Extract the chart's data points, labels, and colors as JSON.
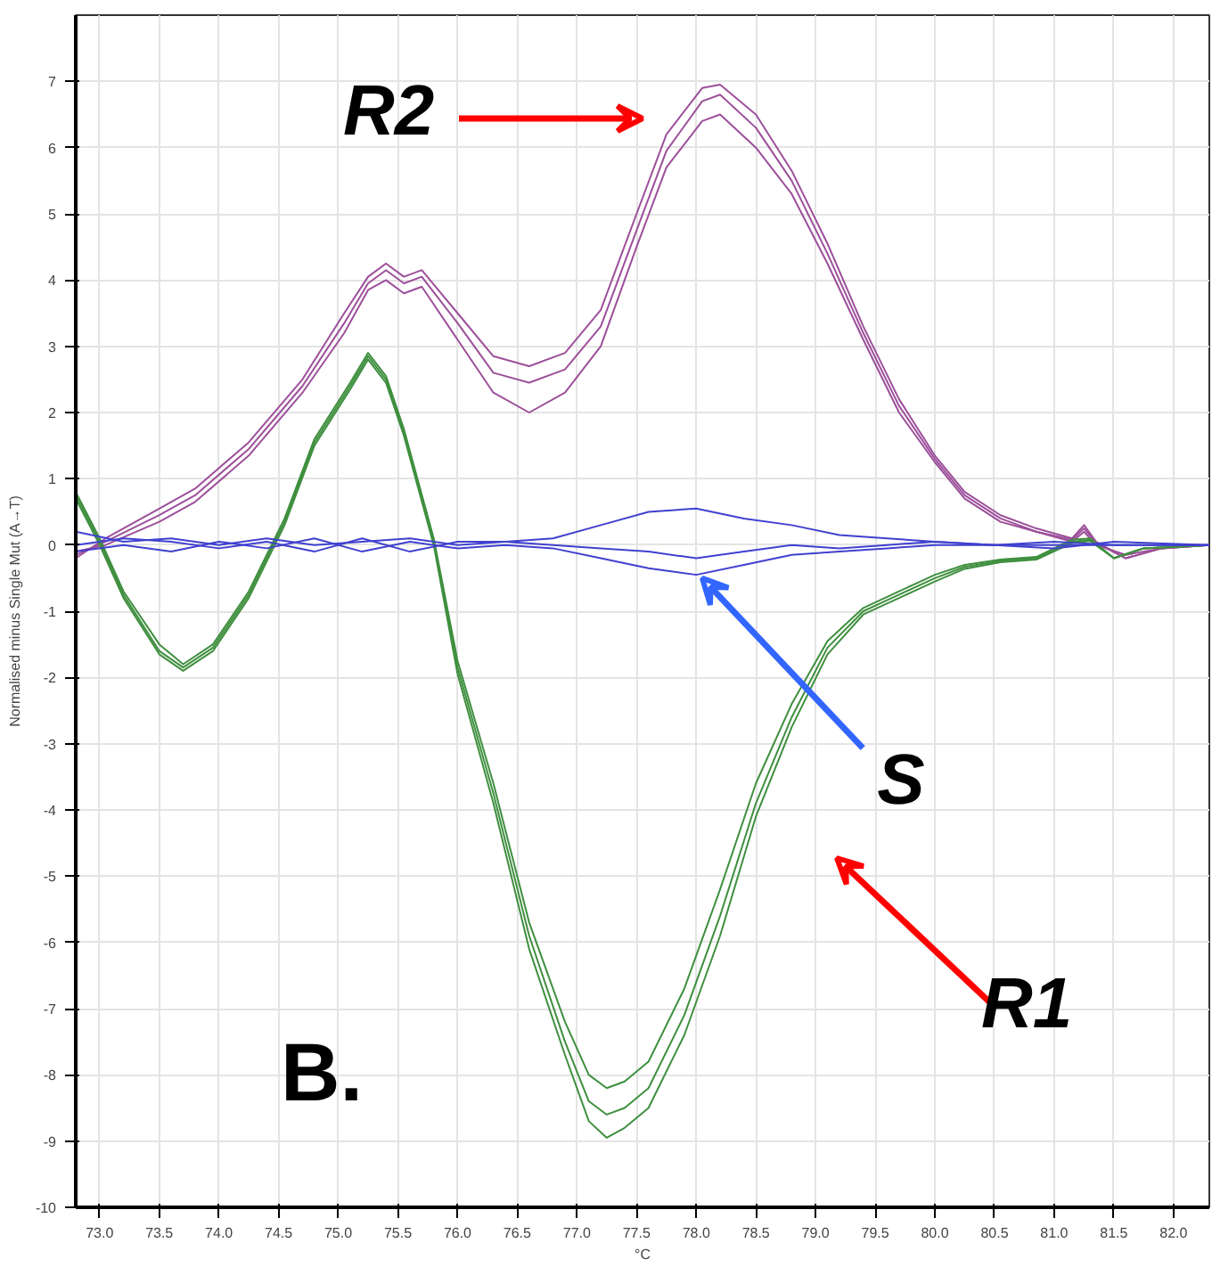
{
  "chart_data": {
    "type": "line",
    "xlabel": "°C",
    "ylabel": "Normalised minus Single Mut (A→T)",
    "xlim": [
      72.8,
      82.3
    ],
    "ylim": [
      -10,
      8
    ],
    "xticks": [
      {
        "value": 73.0,
        "label": "73.0"
      },
      {
        "value": 73.5,
        "label": "73.5"
      },
      {
        "value": 74.0,
        "label": "74.0"
      },
      {
        "value": 74.5,
        "label": "74.5"
      },
      {
        "value": 75.0,
        "label": "75.0"
      },
      {
        "value": 75.5,
        "label": "75.5"
      },
      {
        "value": 76.0,
        "label": "76.0"
      },
      {
        "value": 76.5,
        "label": "76.5"
      },
      {
        "value": 77.0,
        "label": "77.0"
      },
      {
        "value": 77.5,
        "label": "77.5"
      },
      {
        "value": 78.0,
        "label": "78.0"
      },
      {
        "value": 78.5,
        "label": "78.5"
      },
      {
        "value": 79.0,
        "label": "79.0"
      },
      {
        "value": 79.5,
        "label": "79.5"
      },
      {
        "value": 80.0,
        "label": "80.0"
      },
      {
        "value": 80.5,
        "label": "80.5"
      },
      {
        "value": 81.0,
        "label": "81.0"
      },
      {
        "value": 81.5,
        "label": "81.5"
      },
      {
        "value": 82.0,
        "label": "82.0"
      }
    ],
    "yticks": [
      -10,
      -9,
      -8,
      -7,
      -6,
      -5,
      -4,
      -3,
      -2,
      -1,
      0,
      1,
      2,
      3,
      4,
      5,
      6,
      7
    ],
    "grid": true,
    "line_style": "solid",
    "marker": "none",
    "x": [
      72.8,
      73.05,
      73.5,
      73.8,
      74.25,
      74.7,
      75.05,
      75.25,
      75.4,
      75.55,
      75.7,
      76.0,
      76.3,
      76.6,
      76.9,
      77.2,
      77.5,
      77.75,
      78.05,
      78.2,
      78.5,
      78.8,
      79.1,
      79.4,
      79.7,
      80.0,
      80.25,
      80.55,
      80.85,
      81.15,
      81.25,
      81.35,
      81.6,
      81.9,
      82.3
    ],
    "series": [
      {
        "color": "#9c4f9a",
        "values": [
          -0.2,
          0.1,
          0.55,
          0.85,
          1.55,
          2.5,
          3.5,
          4.05,
          4.25,
          4.05,
          4.15,
          3.5,
          2.85,
          2.7,
          2.9,
          3.55,
          5.0,
          6.2,
          6.9,
          6.95,
          6.5,
          5.65,
          4.55,
          3.3,
          2.2,
          1.35,
          0.8,
          0.45,
          0.25,
          0.1,
          0.3,
          0.05,
          -0.2,
          -0.05,
          0
        ]
      },
      {
        "color": "#9c4f9a",
        "values": [
          -0.15,
          0.05,
          0.45,
          0.75,
          1.45,
          2.4,
          3.35,
          3.95,
          4.15,
          3.95,
          4.05,
          3.35,
          2.6,
          2.45,
          2.65,
          3.3,
          4.75,
          5.95,
          6.7,
          6.8,
          6.3,
          5.5,
          4.4,
          3.2,
          2.1,
          1.3,
          0.75,
          0.4,
          0.2,
          0.08,
          0.25,
          0.03,
          -0.2,
          -0.05,
          0
        ]
      },
      {
        "color": "#9c4f9a",
        "values": [
          -0.1,
          0.0,
          0.35,
          0.65,
          1.35,
          2.3,
          3.2,
          3.85,
          4.0,
          3.8,
          3.9,
          3.1,
          2.3,
          2.0,
          2.3,
          3.0,
          4.5,
          5.7,
          6.4,
          6.5,
          6.0,
          5.3,
          4.25,
          3.1,
          2.0,
          1.25,
          0.7,
          0.35,
          0.2,
          0.05,
          0.2,
          0.0,
          -0.15,
          -0.05,
          0
        ]
      },
      {
        "color": "#3f8f3f",
        "x": [
          72.8,
          73.0,
          73.2,
          73.5,
          73.7,
          73.95,
          74.25,
          74.55,
          74.8,
          75.1,
          75.25,
          75.4,
          75.55,
          75.8,
          76.0,
          76.3,
          76.6,
          76.9,
          77.1,
          77.25,
          77.4,
          77.6,
          77.9,
          78.2,
          78.5,
          78.8,
          79.1,
          79.4,
          79.7,
          80.0,
          80.25,
          80.55,
          80.85,
          81.15,
          81.3,
          81.5,
          81.75,
          82.3
        ],
        "values": [
          0.8,
          0.1,
          -0.7,
          -1.5,
          -1.8,
          -1.5,
          -0.7,
          0.4,
          1.6,
          2.45,
          2.9,
          2.55,
          1.75,
          0.1,
          -1.75,
          -3.6,
          -5.7,
          -7.2,
          -8.0,
          -8.2,
          -8.1,
          -7.8,
          -6.7,
          -5.2,
          -3.6,
          -2.4,
          -1.45,
          -0.95,
          -0.7,
          -0.45,
          -0.3,
          -0.22,
          -0.18,
          0.08,
          0.1,
          -0.2,
          -0.05,
          0
        ]
      },
      {
        "color": "#3f8f3f",
        "x": [
          72.8,
          73.0,
          73.2,
          73.5,
          73.7,
          73.95,
          74.25,
          74.55,
          74.8,
          75.1,
          75.25,
          75.4,
          75.55,
          75.8,
          76.0,
          76.3,
          76.6,
          76.9,
          77.1,
          77.25,
          77.4,
          77.6,
          77.9,
          78.2,
          78.5,
          78.8,
          79.1,
          79.4,
          79.7,
          80.0,
          80.25,
          80.55,
          80.85,
          81.15,
          81.3,
          81.5,
          81.75,
          82.3
        ],
        "values": [
          0.75,
          0.05,
          -0.75,
          -1.6,
          -1.85,
          -1.55,
          -0.75,
          0.35,
          1.55,
          2.4,
          2.85,
          2.5,
          1.7,
          0.05,
          -1.85,
          -3.75,
          -5.9,
          -7.5,
          -8.4,
          -8.6,
          -8.5,
          -8.2,
          -7.1,
          -5.6,
          -3.9,
          -2.6,
          -1.55,
          -1.0,
          -0.75,
          -0.5,
          -0.33,
          -0.24,
          -0.2,
          0.05,
          0.08,
          -0.2,
          -0.05,
          0
        ]
      },
      {
        "color": "#3f8f3f",
        "x": [
          72.8,
          73.0,
          73.2,
          73.5,
          73.7,
          73.95,
          74.25,
          74.55,
          74.8,
          75.1,
          75.25,
          75.4,
          75.55,
          75.8,
          76.0,
          76.3,
          76.6,
          76.9,
          77.1,
          77.25,
          77.4,
          77.6,
          77.9,
          78.2,
          78.5,
          78.8,
          79.1,
          79.4,
          79.7,
          80.0,
          80.25,
          80.55,
          80.85,
          81.15,
          81.3,
          81.5,
          81.75,
          82.3
        ],
        "values": [
          0.7,
          0.0,
          -0.8,
          -1.65,
          -1.9,
          -1.6,
          -0.8,
          0.3,
          1.5,
          2.35,
          2.8,
          2.45,
          1.65,
          0.0,
          -1.95,
          -3.9,
          -6.1,
          -7.7,
          -8.7,
          -8.95,
          -8.8,
          -8.5,
          -7.4,
          -5.9,
          -4.1,
          -2.75,
          -1.65,
          -1.05,
          -0.8,
          -0.55,
          -0.36,
          -0.26,
          -0.22,
          0.03,
          0.06,
          -0.2,
          -0.05,
          0
        ]
      },
      {
        "color": "#4040d0",
        "x": [
          72.8,
          73.2,
          73.6,
          74.0,
          74.4,
          74.8,
          75.2,
          75.6,
          76.0,
          76.4,
          76.8,
          77.2,
          77.6,
          78.0,
          78.4,
          78.8,
          79.2,
          79.6,
          80.0,
          80.5,
          81.0,
          81.5,
          82.3
        ],
        "values": [
          0.2,
          0.05,
          0.1,
          0.0,
          0.1,
          0.0,
          0.05,
          0.1,
          0.0,
          0.05,
          0.1,
          0.3,
          0.5,
          0.55,
          0.4,
          0.3,
          0.15,
          0.1,
          0.05,
          0.0,
          0.0,
          0.0,
          0
        ]
      },
      {
        "color": "#4040d0",
        "x": [
          72.8,
          73.2,
          73.6,
          74.0,
          74.4,
          74.8,
          75.2,
          75.6,
          76.0,
          76.4,
          76.8,
          77.2,
          77.6,
          78.0,
          78.4,
          78.8,
          79.2,
          79.6,
          80.0,
          80.5,
          81.0,
          81.5,
          82.3
        ],
        "values": [
          -0.1,
          0.0,
          -0.1,
          0.05,
          -0.05,
          0.1,
          -0.1,
          0.05,
          -0.05,
          0.0,
          -0.05,
          -0.2,
          -0.35,
          -0.45,
          -0.3,
          -0.15,
          -0.1,
          -0.05,
          0.0,
          0.0,
          0.05,
          0.0,
          0
        ]
      },
      {
        "color": "#4040d0",
        "x": [
          72.8,
          73.2,
          73.6,
          74.0,
          74.4,
          74.8,
          75.2,
          75.6,
          76.0,
          76.4,
          76.8,
          77.2,
          77.6,
          78.0,
          78.4,
          78.8,
          79.2,
          79.6,
          80.0,
          80.5,
          81.0,
          81.5,
          82.3
        ],
        "values": [
          0.0,
          0.1,
          0.05,
          -0.05,
          0.05,
          -0.1,
          0.1,
          -0.1,
          0.05,
          0.05,
          0.0,
          -0.05,
          -0.1,
          -0.2,
          -0.1,
          0.0,
          -0.05,
          0.0,
          0.05,
          0.0,
          -0.05,
          0.05,
          0
        ]
      }
    ],
    "annotations": [
      "R2",
      {
        "text": "S",
        "x": 78.05,
        "y": -0.5
      },
      "R1",
      "B."
    ]
  }
}
